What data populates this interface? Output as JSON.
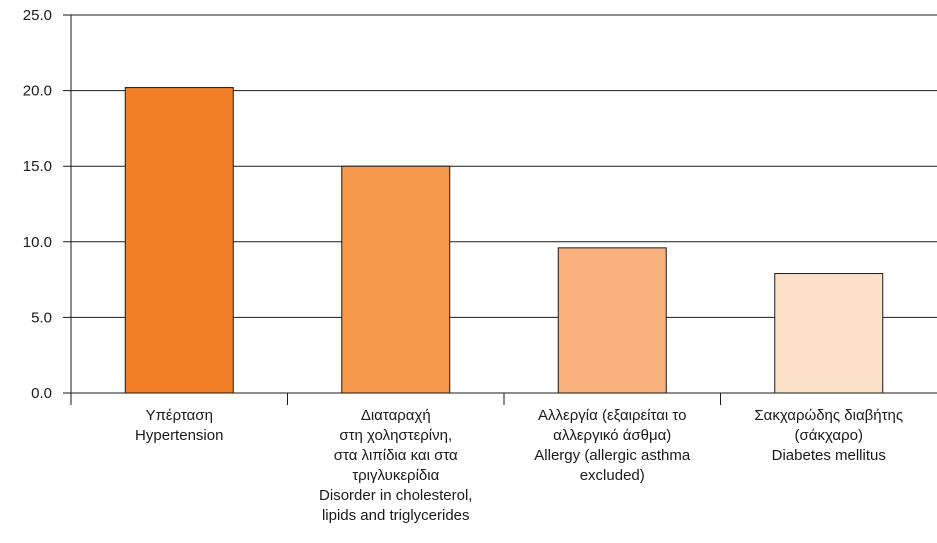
{
  "chart_data": {
    "type": "bar",
    "categories": [
      [
        "Υπέρταση",
        "Hypertension"
      ],
      [
        "Διαταραχή",
        "στη χοληστερίνη,",
        "στα λιπίδια και στα",
        "τριγλυκερίδια",
        "Disorder in cholesterol,",
        "lipids and triglycerides"
      ],
      [
        "Αλλεργία (εξαιρείται το",
        "αλλεργικό άσθμα)",
        "Allergy (allergic asthma",
        "excluded)"
      ],
      [
        "Σακχαρώδης διαβήτης",
        "(σάκχαρο)",
        "Diabetes mellitus"
      ]
    ],
    "values": [
      20.2,
      15.0,
      9.6,
      7.9
    ],
    "colors": [
      "#f07f27",
      "#f5984b",
      "#f8b07d",
      "#fde0c8"
    ],
    "bar_outline_color": "#1a1a1a",
    "yticks": [
      "0.0",
      "5.0",
      "10.0",
      "15.0",
      "20.0",
      "25.0"
    ],
    "ylim": [
      0,
      25
    ],
    "grid": true,
    "title": "",
    "xlabel": "",
    "ylabel": ""
  }
}
